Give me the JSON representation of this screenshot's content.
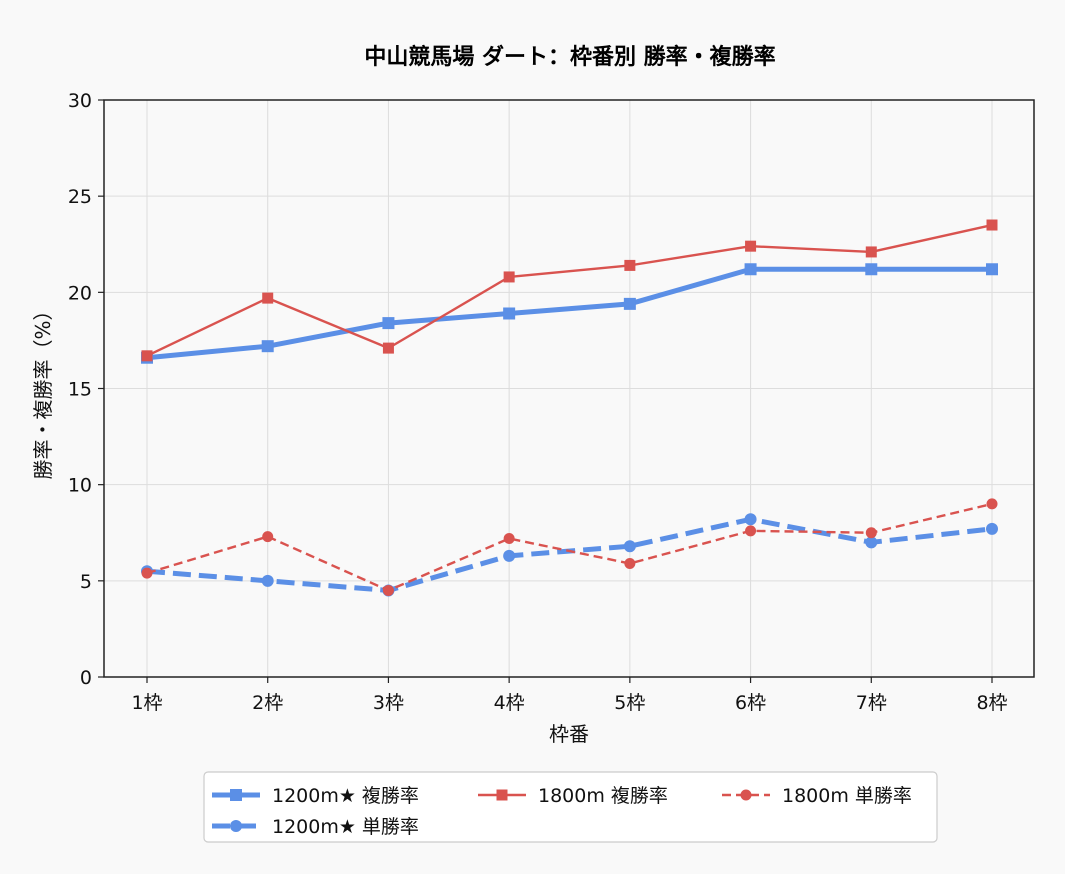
{
  "chart_data": {
    "type": "line",
    "title": "中山競馬場 ダート：枠番別 勝率・複勝率",
    "xlabel": "枠番",
    "ylabel": "勝率・複勝率（%）",
    "categories": [
      "1枠",
      "2枠",
      "3枠",
      "4枠",
      "5枠",
      "6枠",
      "7枠",
      "8枠"
    ],
    "ylim": [
      0,
      30
    ],
    "yticks": [
      0,
      5,
      10,
      15,
      20,
      25,
      30
    ],
    "grid": true,
    "legend_position": "bottom-center",
    "series": [
      {
        "name": "1200m★ 複勝率",
        "color": "#5b8fe6",
        "style": "solid",
        "marker": "square",
        "weight": "thick",
        "values": [
          16.6,
          17.2,
          18.4,
          18.9,
          19.4,
          21.2,
          21.2,
          21.2
        ]
      },
      {
        "name": "1200m★ 単勝率",
        "color": "#5b8fe6",
        "style": "dashed",
        "marker": "circle",
        "weight": "thick",
        "values": [
          5.5,
          5.0,
          4.5,
          6.3,
          6.8,
          8.2,
          7.0,
          7.7
        ]
      },
      {
        "name": "1800m 複勝率",
        "color": "#d9534f",
        "style": "solid",
        "marker": "square",
        "weight": "thin",
        "values": [
          16.7,
          19.7,
          17.1,
          20.8,
          21.4,
          22.4,
          22.1,
          23.5
        ]
      },
      {
        "name": "1800m 単勝率",
        "color": "#d9534f",
        "style": "dashed",
        "marker": "circle",
        "weight": "thin",
        "values": [
          5.4,
          7.3,
          4.5,
          7.2,
          5.9,
          7.6,
          7.5,
          9.0
        ]
      }
    ]
  }
}
